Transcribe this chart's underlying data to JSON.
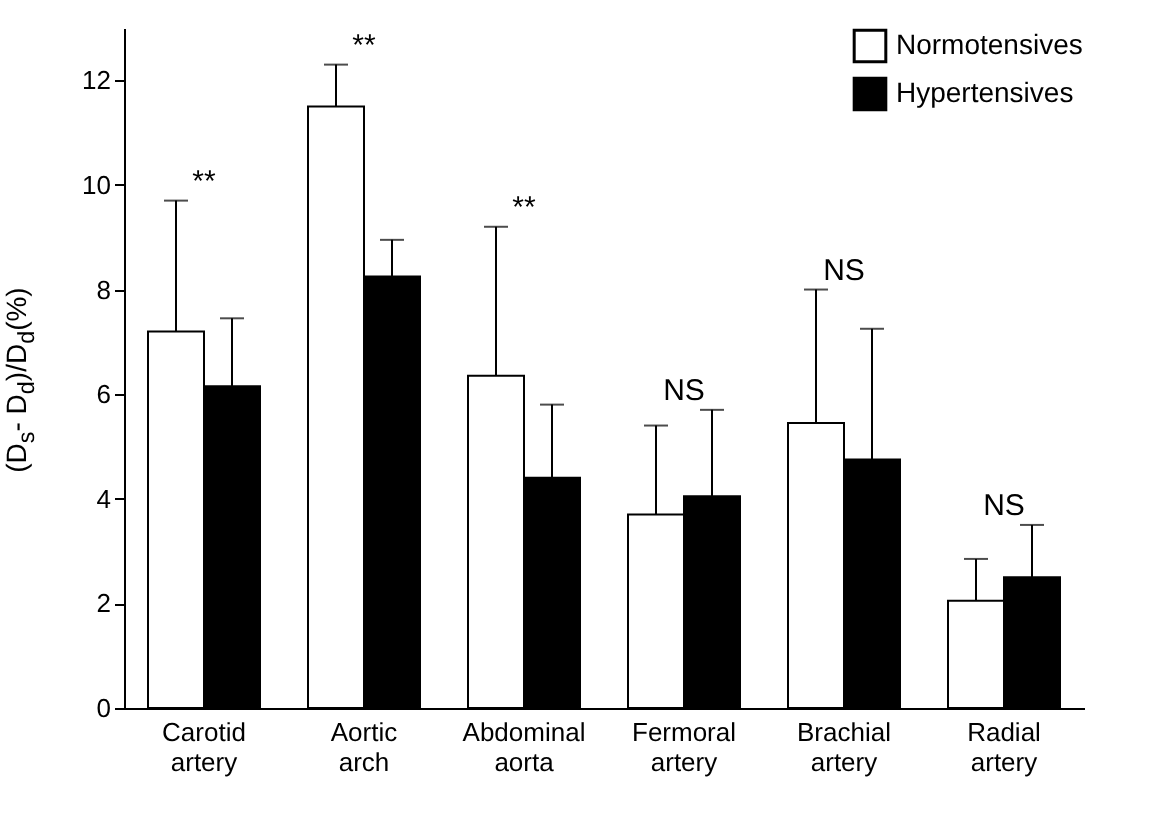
{
  "chart_data": {
    "type": "bar",
    "ylabel": "(D$_{s}$- D$_{d}$)/D$_{d}$(%)",
    "categories": [
      "Carotid artery",
      "Aortic arch",
      "Abdominal aorta",
      "Fermoral artery",
      "Brachial artery",
      "Radial artery"
    ],
    "series": [
      {
        "name": "Normotensives",
        "color": "#ffffff",
        "values": [
          7.2,
          11.5,
          6.35,
          3.7,
          5.45,
          2.05
        ],
        "errors": [
          [
            7.2,
            9.7
          ],
          [
            11.5,
            12.3
          ],
          [
            6.35,
            9.2
          ],
          [
            3.7,
            5.4
          ],
          [
            5.45,
            8.0
          ],
          [
            2.05,
            2.85
          ]
        ]
      },
      {
        "name": "Hypertensives",
        "color": "#000000",
        "values": [
          6.15,
          8.25,
          4.4,
          4.05,
          4.75,
          2.5
        ],
        "errors": [
          [
            6.15,
            7.45
          ],
          [
            8.25,
            8.95
          ],
          [
            4.4,
            5.8
          ],
          [
            4.05,
            5.7
          ],
          [
            4.75,
            7.25
          ],
          [
            2.5,
            3.5
          ]
        ]
      }
    ],
    "annotations": [
      "**",
      "**",
      "**",
      "NS",
      "NS",
      "NS"
    ],
    "ylim": [
      0,
      13
    ],
    "yticks": [
      0,
      2,
      4,
      6,
      8,
      10,
      12
    ],
    "grid": false,
    "legend": "top right"
  }
}
